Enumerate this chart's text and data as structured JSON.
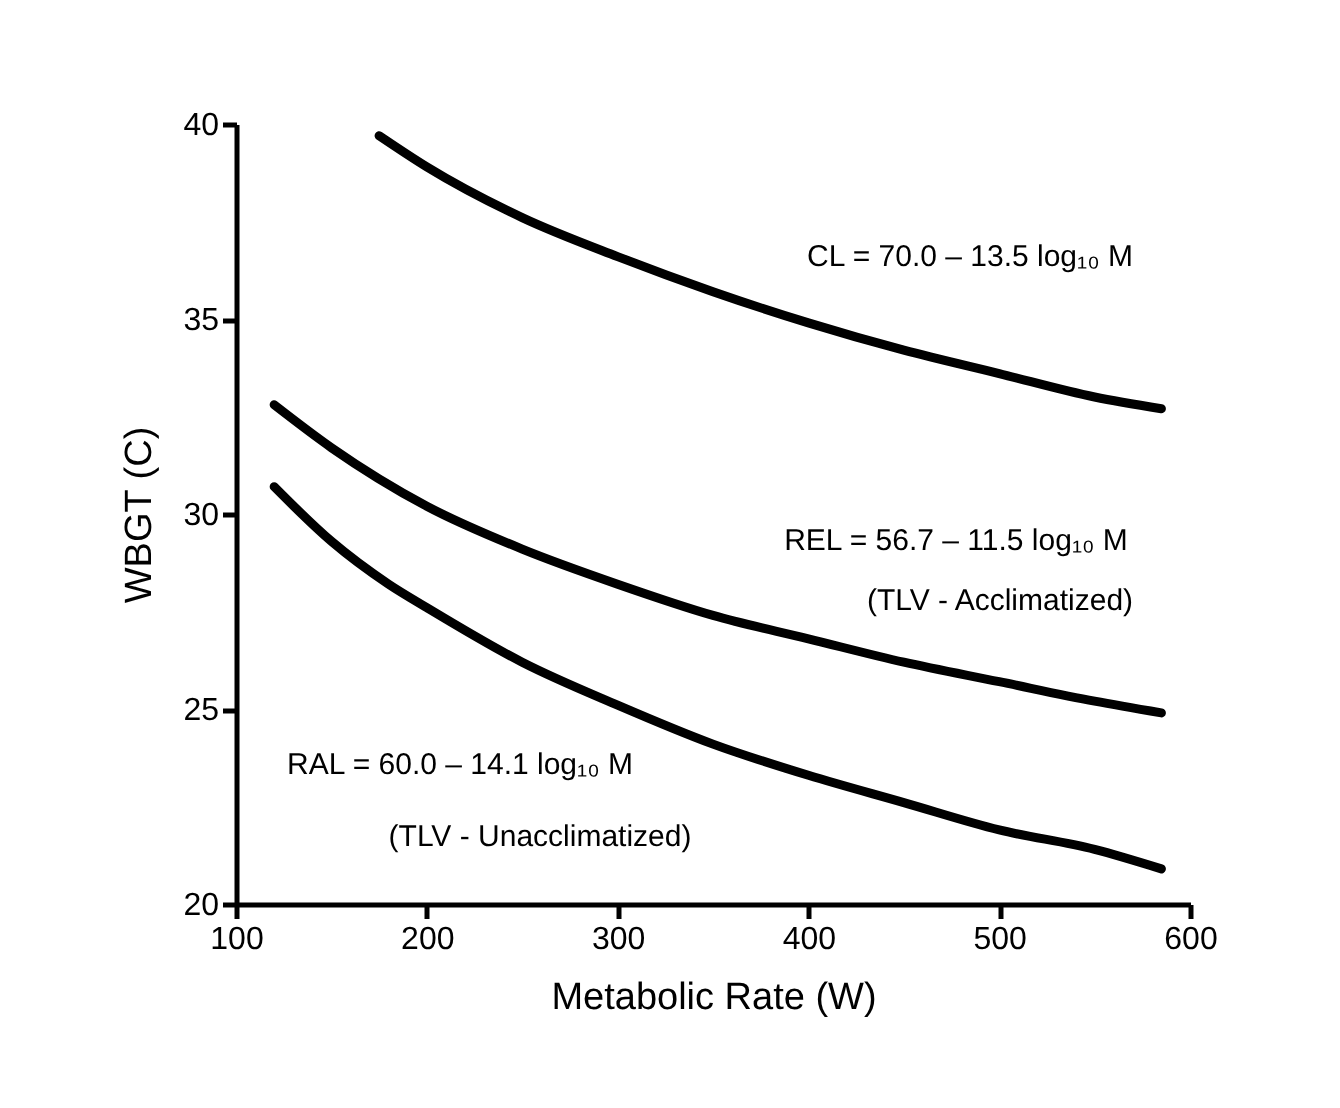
{
  "chart_data": {
    "type": "line",
    "xlabel": "Metabolic Rate (W)",
    "ylabel": "WBGT (C)",
    "xlim": [
      100,
      600
    ],
    "xticks": [
      100,
      200,
      300,
      400,
      500,
      600
    ],
    "ylim": [
      20,
      40
    ],
    "yticks": [
      20,
      25,
      30,
      35,
      40
    ],
    "grid": false,
    "legend": false,
    "marker": "none",
    "line_style": "solid",
    "series": [
      {
        "color": "#000000",
        "x": [
          175,
          200,
          250,
          300,
          350,
          400,
          450,
          500,
          550,
          585
        ],
        "values": [
          39.7,
          38.9,
          37.6,
          36.6,
          35.7,
          34.9,
          34.2,
          33.6,
          33.0,
          32.7
        ]
      },
      {
        "color": "#000000",
        "x": [
          120,
          150,
          200,
          250,
          300,
          350,
          400,
          450,
          500,
          550,
          585
        ],
        "values": [
          32.8,
          31.7,
          30.2,
          29.1,
          28.2,
          27.4,
          26.8,
          26.2,
          25.7,
          25.2,
          24.9
        ]
      },
      {
        "color": "#000000",
        "x": [
          120,
          150,
          180,
          200,
          250,
          300,
          350,
          400,
          450,
          500,
          550,
          585
        ],
        "values": [
          30.7,
          29.3,
          28.2,
          27.6,
          26.2,
          25.1,
          24.1,
          23.3,
          22.6,
          21.9,
          21.4,
          20.9
        ]
      }
    ],
    "annotations": [
      "CL = 70.0 – 13.5 log₁₀ M",
      "REL = 56.7 – 11.5 log₁₀ M",
      "(TLV - Acclimatized)",
      "RAL = 60.0 – 14.1 log₁₀ M",
      "(TLV - Unacclimatized)"
    ]
  }
}
